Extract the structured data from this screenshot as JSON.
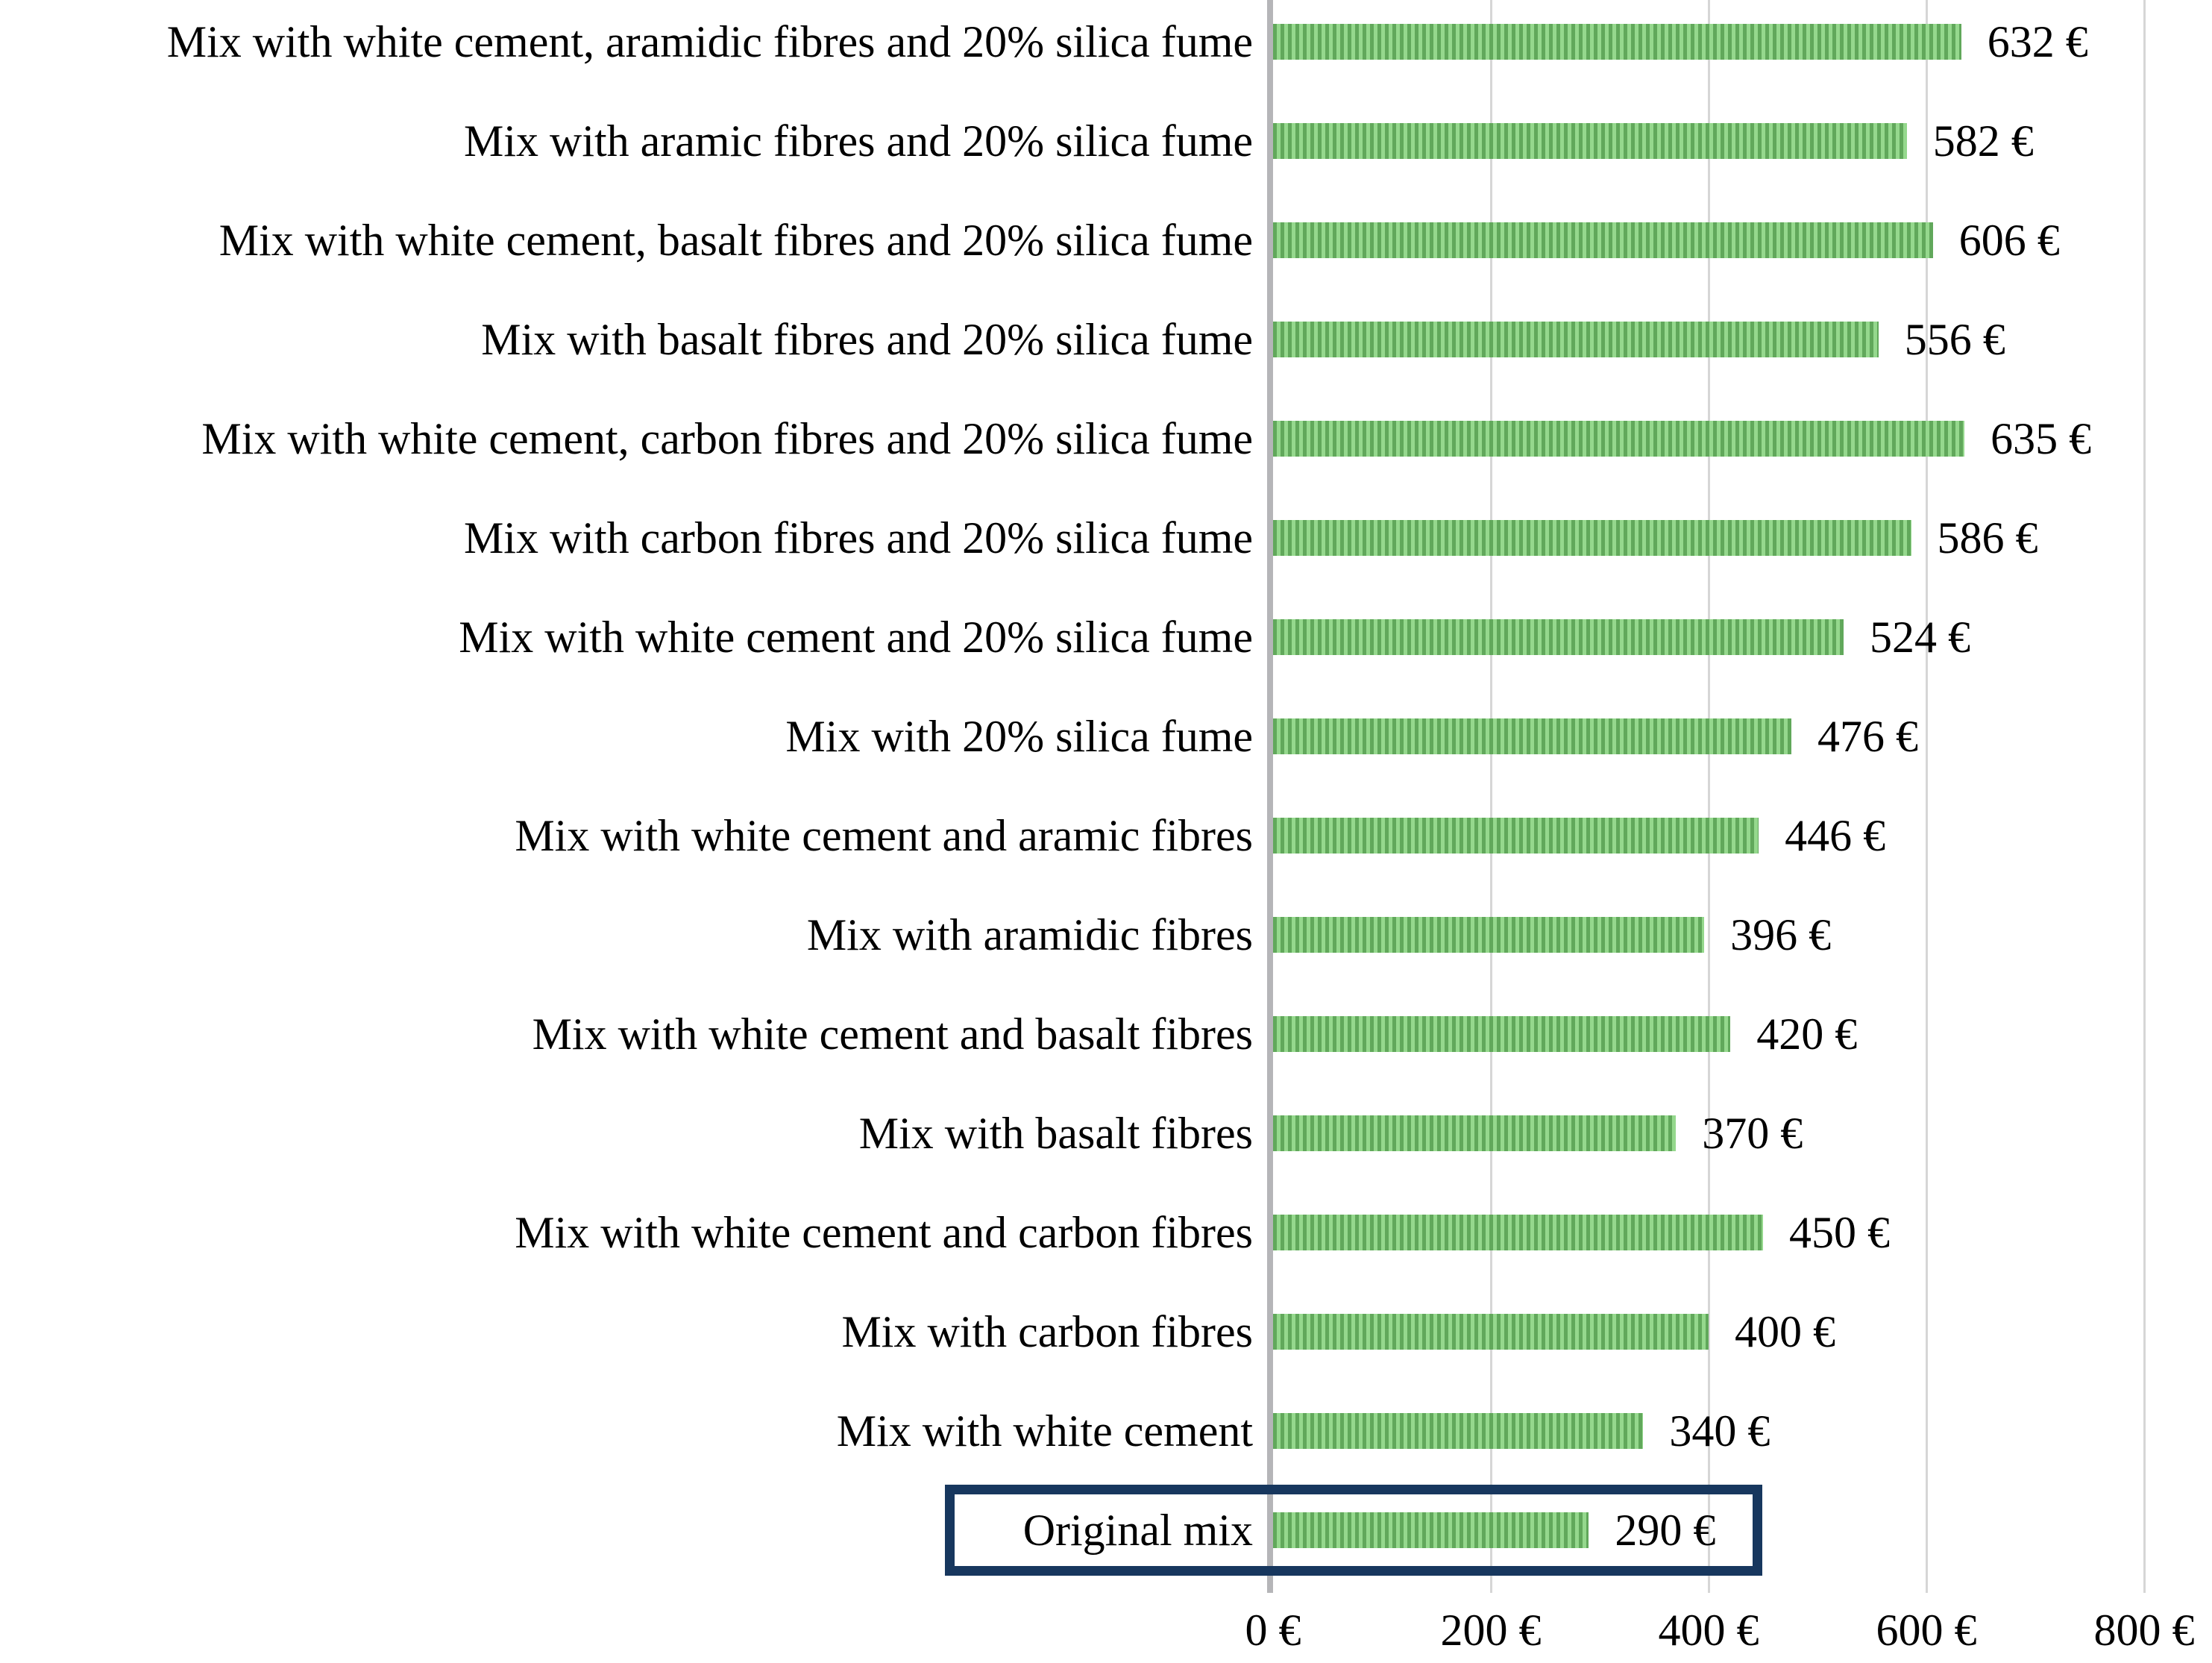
{
  "chart_data": {
    "type": "bar",
    "orientation": "horizontal",
    "title": "",
    "xlabel": "",
    "ylabel": "",
    "categories": [
      "Mix with white cement, aramidic fibres and 20% silica fume",
      "Mix with aramic fibres and 20% silica fume",
      "Mix with white cement, basalt fibres and 20% silica fume",
      "Mix with basalt fibres and 20% silica fume",
      "Mix with white cement, carbon fibres and 20% silica fume",
      "Mix with carbon fibres and 20% silica fume",
      "Mix with white cement and 20% silica fume",
      "Mix with 20% silica fume",
      "Mix with white cement and aramic fibres",
      "Mix with aramidic fibres",
      "Mix with white cement and basalt fibres",
      "Mix with basalt fibres",
      "Mix with white cement and carbon fibres",
      "Mix with carbon fibres",
      "Mix with white cement",
      "Original mix"
    ],
    "values": [
      632,
      582,
      606,
      556,
      635,
      586,
      524,
      476,
      446,
      396,
      420,
      370,
      450,
      400,
      340,
      290
    ],
    "data_labels": [
      "632 €",
      "582 €",
      "606 €",
      "556 €",
      "635 €",
      "586 €",
      "524 €",
      "476 €",
      "446 €",
      "396 €",
      "420 €",
      "370 €",
      "450 €",
      "400 €",
      "340 €",
      "290 €"
    ],
    "x_ticks": [
      "0 €",
      "200 €",
      "400 €",
      "600 €",
      "800 €"
    ],
    "x_tick_values": [
      0,
      200,
      400,
      600,
      800
    ],
    "xlim": [
      0,
      800
    ],
    "grid": "vertical-gridlines-at-200-intervals",
    "legend": "none",
    "highlighted_category": "Original mix",
    "highlighted_index": 15,
    "colors": {
      "bar_stripe_light": "#95d88d",
      "bar_stripe_dark": "#61a85b",
      "highlight_box": "#17375e",
      "gridline": "#d6d6d6",
      "axis_line": "#b5b5b8",
      "text": "#000000"
    }
  }
}
